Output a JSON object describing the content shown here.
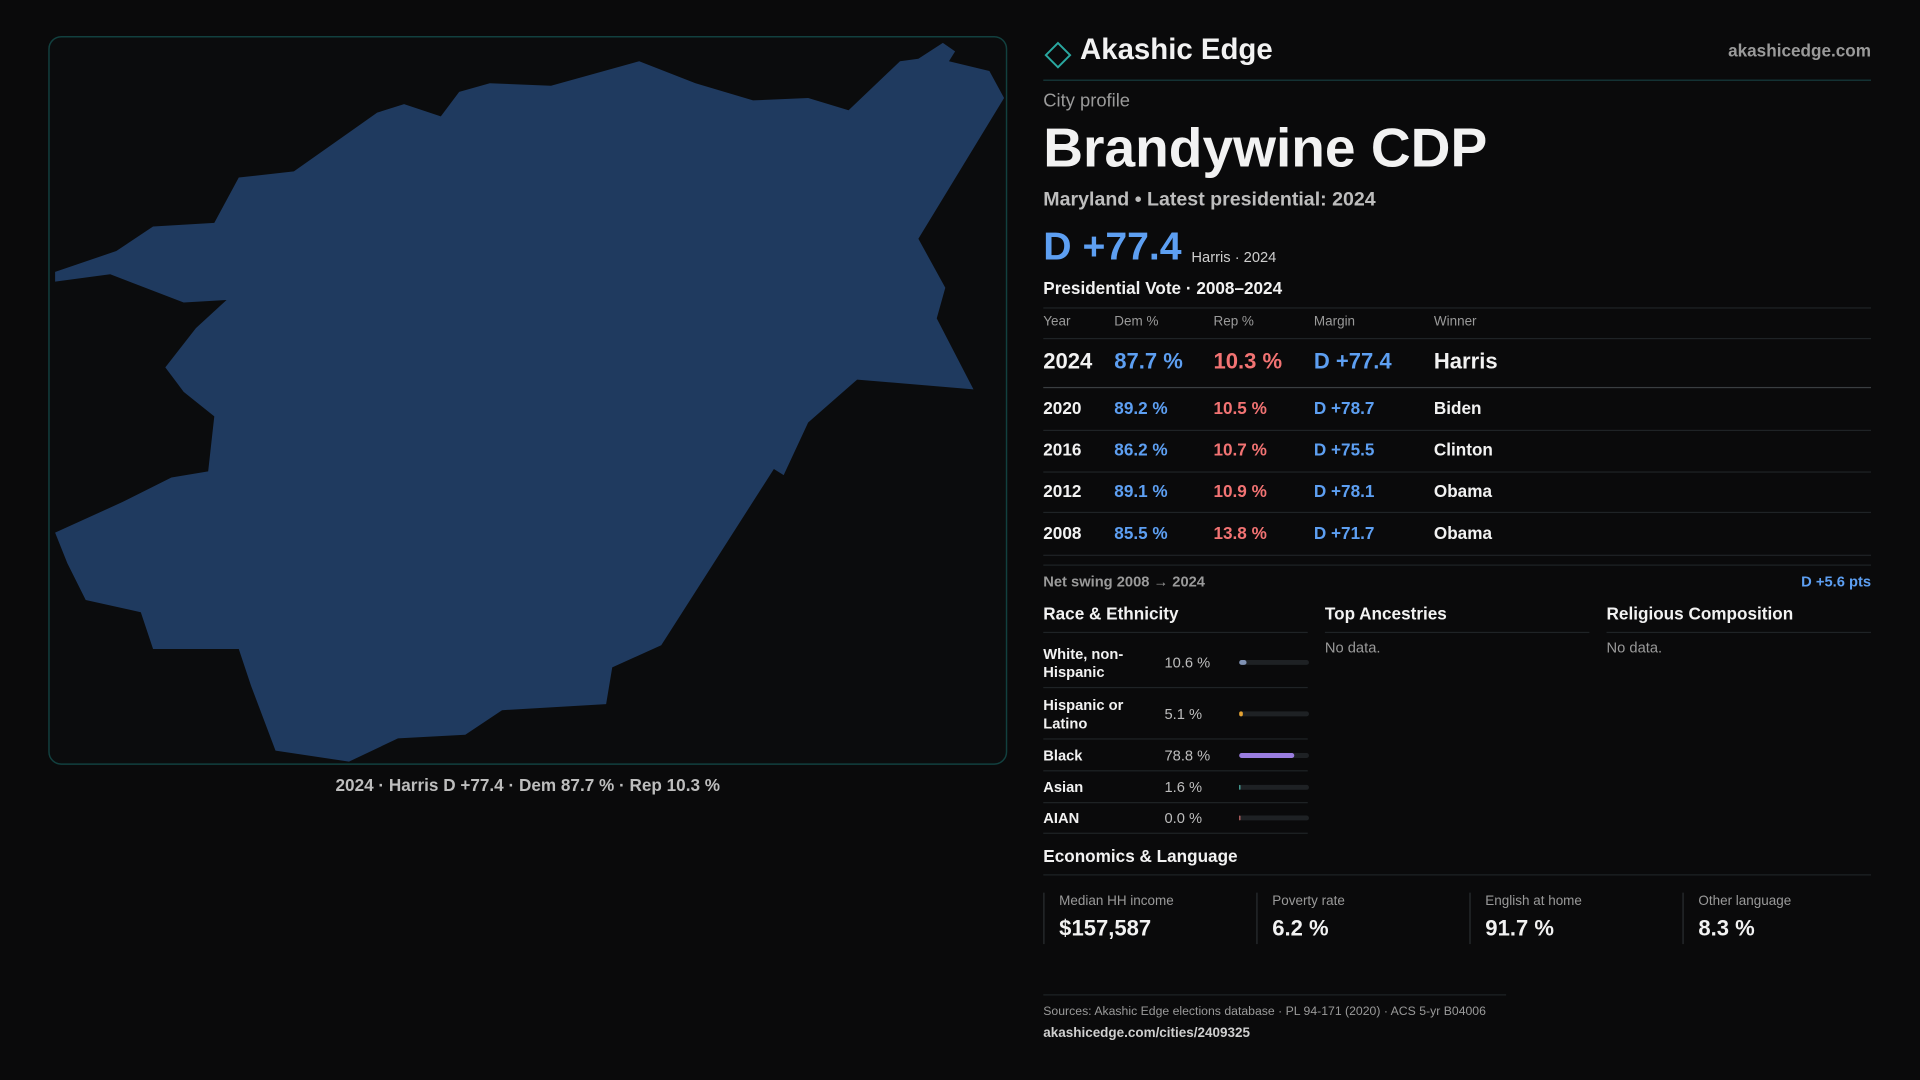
{
  "header": {
    "brand": "Akashic Edge",
    "site": "akashicedge.com"
  },
  "profile": {
    "kicker": "City profile",
    "name": "Brandywine CDP",
    "subtitle": "Maryland • Latest presidential: 2024",
    "margin": "D +77.4",
    "margin_note": "Harris · 2024"
  },
  "map": {
    "caption": "2024 · Harris D +77.4 · Dem 87.7 % · Rep 10.3 %"
  },
  "votes": {
    "title": "Presidential Vote · 2008–2024",
    "columns": [
      "Year",
      "Dem %",
      "Rep %",
      "Margin",
      "Winner"
    ],
    "rows": [
      [
        "2024",
        "87.7 %",
        "10.3 %",
        "D +77.4",
        "Harris"
      ],
      [
        "2020",
        "89.2 %",
        "10.5 %",
        "D +78.7",
        "Biden"
      ],
      [
        "2016",
        "86.2 %",
        "10.7 %",
        "D +75.5",
        "Clinton"
      ],
      [
        "2012",
        "89.1 %",
        "10.9 %",
        "D +78.1",
        "Obama"
      ],
      [
        "2008",
        "85.5 %",
        "13.8 %",
        "D +71.7",
        "Obama"
      ]
    ],
    "swing_label": "Net swing 2008 → 2024",
    "swing": "D +5.6 pts"
  },
  "race": {
    "title": "Race & Ethnicity",
    "scale_max": 100,
    "rows": [
      {
        "label": "White, non-Hispanic",
        "value": 10.6,
        "value_label": "10.6 %",
        "color": "#8092b4"
      },
      {
        "label": "Hispanic or Latino",
        "value": 5.1,
        "value_label": "5.1 %",
        "color": "#e3a233"
      },
      {
        "label": "Black",
        "value": 78.8,
        "value_label": "78.8 %",
        "color": "#9a7de0"
      },
      {
        "label": "Asian",
        "value": 1.6,
        "value_label": "1.6 %",
        "color": "#4fb3a9"
      },
      {
        "label": "AIAN",
        "value": 0.0,
        "value_label": "0.0 %",
        "color": "#c46a6a"
      }
    ]
  },
  "ancestries": {
    "title": "Top Ancestries",
    "empty": "No data."
  },
  "religion": {
    "title": "Religious Composition",
    "empty": "No data."
  },
  "economics": {
    "title": "Economics & Language",
    "stats": [
      {
        "label": "Median HH income",
        "value": "$157,587"
      },
      {
        "label": "Poverty rate",
        "value": "6.2 %"
      },
      {
        "label": "English at home",
        "value": "91.7 %"
      },
      {
        "label": "Other language",
        "value": "8.3 %"
      }
    ]
  },
  "footer": {
    "sources": "Sources: Akashic Edge elections database · PL 94-171 (2020) · ACS 5-yr B04006",
    "url": "akashicedge.com/cities/2409325"
  }
}
